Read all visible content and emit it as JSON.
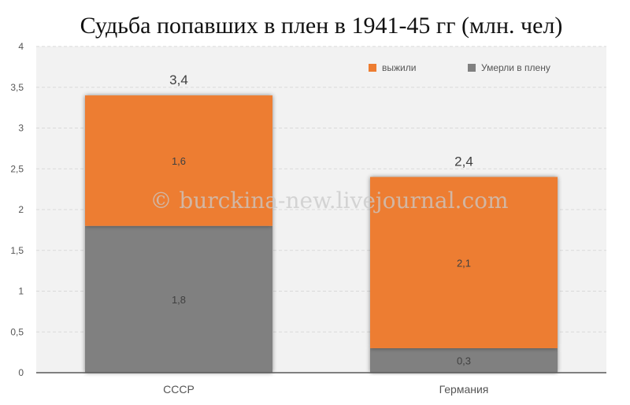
{
  "chart_data": {
    "type": "bar",
    "stacked": true,
    "title": "Судьба попавших в плен в 1941-45 гг (млн. чел)",
    "categories": [
      "СССР",
      "Германия"
    ],
    "series": [
      {
        "name": "Умерли в плену",
        "values": [
          1.8,
          0.3
        ],
        "labels": [
          "1,8",
          "0,3"
        ],
        "color": "#808080"
      },
      {
        "name": "выжили",
        "values": [
          1.6,
          2.1
        ],
        "labels": [
          "1,6",
          "2,1"
        ],
        "color": "#ED7D31"
      }
    ],
    "totals": [
      3.4,
      2.4
    ],
    "total_labels": [
      "3,4",
      "2,4"
    ],
    "ylim": [
      0,
      4
    ],
    "yticks": [
      0,
      0.5,
      1,
      1.5,
      2,
      2.5,
      3,
      3.5,
      4
    ],
    "ytick_labels": [
      "0",
      "0,5",
      "1",
      "1,5",
      "2",
      "2,5",
      "3",
      "3,5",
      "4"
    ],
    "grid": true,
    "legend_position": "top-right",
    "legend_order": [
      "выжили",
      "Умерли в плену"
    ],
    "xlabel": "",
    "ylabel": ""
  },
  "watermark": "© burckina-new.livejournal.com",
  "colors": {
    "plot_background": "#F2F2F2",
    "grid": "#D9D9D9",
    "axis": "#595959"
  }
}
